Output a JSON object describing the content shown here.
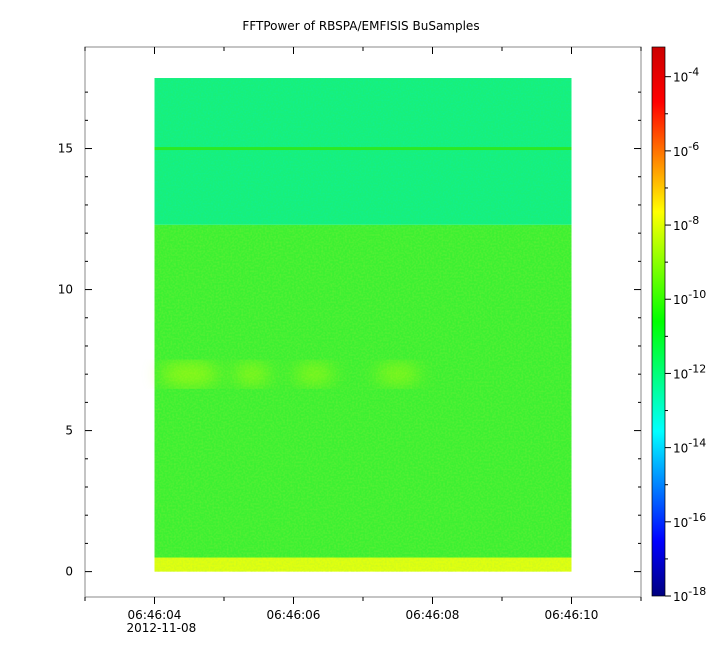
{
  "chart_data": {
    "type": "heatmap",
    "title": "FFTPower of RBSPA/EMFISIS  BuSamples",
    "xlabel": "",
    "ylabel": "",
    "x_ticks": [
      {
        "time": "06:46:04",
        "date": "2012-11-08"
      },
      {
        "time": "06:46:06",
        "date": ""
      },
      {
        "time": "06:46:08",
        "date": ""
      },
      {
        "time": "06:46:10",
        "date": ""
      }
    ],
    "x_range_seconds": [
      -1.0,
      7.0
    ],
    "x_data_range_seconds": [
      0.0,
      6.0
    ],
    "y_ticks": [
      "0",
      "5",
      "10",
      "15"
    ],
    "ylim": [
      -0.9,
      18.6
    ],
    "y_data_range": [
      0,
      17.5
    ],
    "grid": false,
    "colorbar": {
      "scale": "log",
      "ticks": [
        {
          "base": "10",
          "exp": "-4"
        },
        {
          "base": "10",
          "exp": "-6"
        },
        {
          "base": "10",
          "exp": "-8"
        },
        {
          "base": "10",
          "exp": "-10"
        },
        {
          "base": "10",
          "exp": "-12"
        },
        {
          "base": "10",
          "exp": "-14"
        },
        {
          "base": "10",
          "exp": "-16"
        },
        {
          "base": "10",
          "exp": "-18"
        }
      ],
      "range_exp": [
        -18,
        -3.2
      ],
      "colormap": [
        "#00007f",
        "#0000ff",
        "#0080ff",
        "#00ffff",
        "#00ff80",
        "#00ff00",
        "#80ff00",
        "#ffff00",
        "#ff8000",
        "#ff0000",
        "#cc0000"
      ]
    },
    "bands": [
      {
        "y_range": [
          0,
          0.5
        ],
        "log10_power": -8.9,
        "color": "#e0ff10"
      },
      {
        "y_range": [
          0.5,
          12.3
        ],
        "log10_power": -10.2,
        "color": "#3cf032"
      },
      {
        "y_range": [
          12.3,
          17.5
        ],
        "log10_power": -11.6,
        "color": "#18f07a"
      }
    ],
    "features": [
      {
        "label": "line at 15",
        "y": 15.0,
        "log10_power": -10.5
      },
      {
        "label": "enhancement near 7",
        "y": 7.0,
        "log10_power": -9.5
      }
    ]
  }
}
